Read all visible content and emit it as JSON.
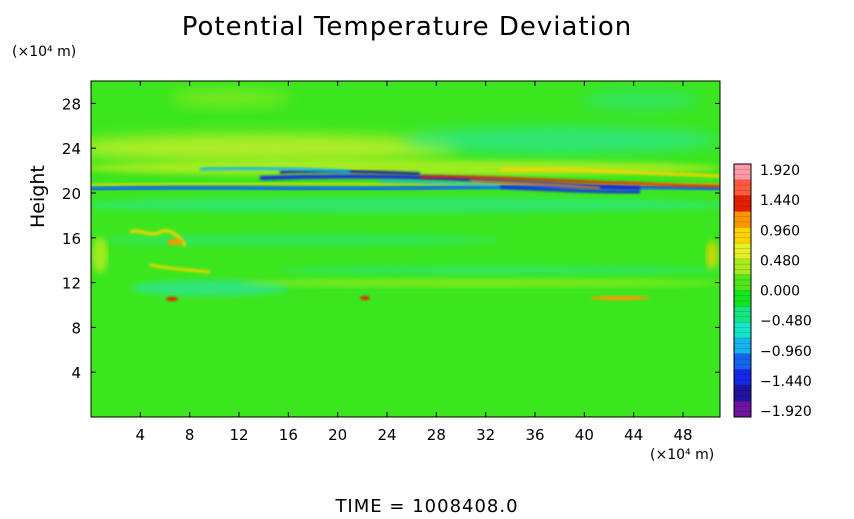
{
  "chart_data": {
    "type": "heatmap",
    "title": "Potential Temperature Deviation",
    "ylabel": "Height",
    "xlabel": "",
    "y_unit": "(×10⁴ m)",
    "x_unit": "(×10⁴ m)",
    "xlim": [
      0,
      51
    ],
    "ylim": [
      0,
      30
    ],
    "x_ticks": [
      "4",
      "8",
      "12",
      "16",
      "20",
      "24",
      "28",
      "32",
      "36",
      "40",
      "44",
      "48"
    ],
    "x_tick_values": [
      4,
      8,
      12,
      16,
      20,
      24,
      28,
      32,
      36,
      40,
      44,
      48
    ],
    "y_ticks": [
      "4",
      "8",
      "12",
      "16",
      "20",
      "24",
      "28"
    ],
    "y_tick_values": [
      4,
      8,
      12,
      16,
      20,
      24,
      28
    ],
    "colorbar": {
      "labels": [
        "1.920",
        "1.440",
        "0.960",
        "0.480",
        "0.000",
        "−0.480",
        "−0.960",
        "−1.440",
        "−1.920"
      ],
      "values": [
        1.92,
        1.44,
        0.96,
        0.48,
        0.0,
        -0.48,
        -0.96,
        -1.44,
        -1.92
      ],
      "colors": [
        "#ff9aa6",
        "#ff5a3c",
        "#e61e00",
        "#ff9600",
        "#ffd200",
        "#e6f028",
        "#a8ec20",
        "#50e61e",
        "#14e61e",
        "#14e682",
        "#14e6c8",
        "#14b4f0",
        "#1464f0",
        "#1428e6",
        "#1e14a0",
        "#6e14a0"
      ]
    },
    "features": [
      {
        "x": [
          0,
          51
        ],
        "y": [
          24.5,
          24.5
        ],
        "value": 0.45
      },
      {
        "x": [
          0,
          51
        ],
        "y": [
          20.5,
          20.5
        ],
        "value": -1.8
      },
      {
        "x": [
          0,
          51
        ],
        "y": [
          21.2,
          21.2
        ],
        "value": 1.9
      },
      {
        "x": [
          0,
          51
        ],
        "y": [
          10.3,
          10.3
        ],
        "value": 0.9
      },
      {
        "x": [
          5,
          8
        ],
        "y": [
          15.2,
          15.2
        ],
        "value": 1.2
      }
    ],
    "grid": false,
    "legend_position": "right"
  },
  "footer": {
    "label": "TIME",
    "eq": "=",
    "value": "1008408.0"
  }
}
